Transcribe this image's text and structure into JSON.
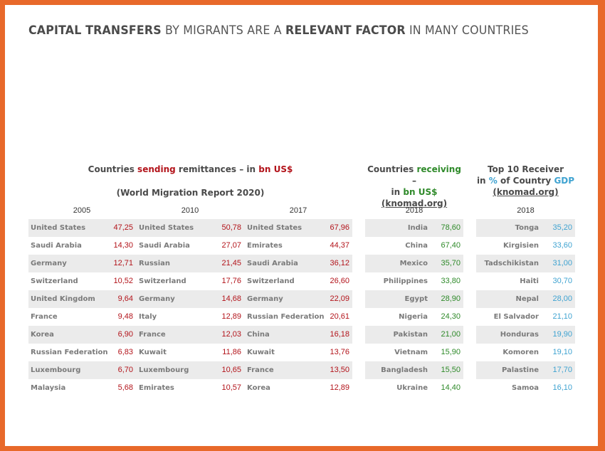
{
  "title": {
    "part1": "CAPITAL TRANSFERS",
    "part2": " BY MIGRANTS ARE A ",
    "part3": "RELEVANT FACTOR",
    "part4": " IN MANY COUNTRIES"
  },
  "sending": {
    "h1": "Countries ",
    "h2": "sending",
    "h3": " remittances – in ",
    "h4": "bn US$",
    "h5": "(World Migration Report 2020)",
    "years": [
      "2005",
      "2010",
      "2017"
    ],
    "rows": [
      [
        [
          "United States",
          "47,25"
        ],
        [
          "United States",
          "50,78"
        ],
        [
          "United States",
          "67,96"
        ]
      ],
      [
        [
          "Saudi Arabia",
          "14,30"
        ],
        [
          "Saudi Arabia",
          "27,07"
        ],
        [
          "Emirates",
          "44,37"
        ]
      ],
      [
        [
          "Germany",
          "12,71"
        ],
        [
          "Russian",
          "21,45"
        ],
        [
          "Saudi Arabia",
          "36,12"
        ]
      ],
      [
        [
          "Switzerland",
          "10,52"
        ],
        [
          "Switzerland",
          "17,76"
        ],
        [
          "Switzerland",
          "26,60"
        ]
      ],
      [
        [
          "United Kingdom",
          "9,64"
        ],
        [
          "Germany",
          "14,68"
        ],
        [
          "Germany",
          "22,09"
        ]
      ],
      [
        [
          "France",
          "9,48"
        ],
        [
          "Italy",
          "12,89"
        ],
        [
          "Russian Federation",
          "20,61"
        ]
      ],
      [
        [
          "Korea",
          "6,90"
        ],
        [
          "France",
          "12,03"
        ],
        [
          "China",
          "16,18"
        ]
      ],
      [
        [
          "Russian Federation",
          "6,83"
        ],
        [
          "Kuwait",
          "11,86"
        ],
        [
          "Kuwait",
          "13,76"
        ]
      ],
      [
        [
          "Luxembourg",
          "6,70"
        ],
        [
          "Luxembourg",
          "10,65"
        ],
        [
          "France",
          "13,50"
        ]
      ],
      [
        [
          "Malaysia",
          "5,68"
        ],
        [
          "Emirates",
          "10,57"
        ],
        [
          "Korea",
          "12,89"
        ]
      ]
    ]
  },
  "receiving": {
    "h1": "Countries ",
    "h2": "receiving",
    "h3": " –",
    "h4": "in ",
    "h5": "bn US$",
    "h6": "(knomad.org)",
    "year": "2018",
    "rows": [
      [
        "India",
        "78,60"
      ],
      [
        "China",
        "67,40"
      ],
      [
        "Mexico",
        "35,70"
      ],
      [
        "Philippines",
        "33,80"
      ],
      [
        "Egypt",
        "28,90"
      ],
      [
        "Nigeria",
        "24,30"
      ],
      [
        "Pakistan",
        "21,00"
      ],
      [
        "Vietnam",
        "15,90"
      ],
      [
        "Bangladesh",
        "15,50"
      ],
      [
        "Ukraine",
        "14,40"
      ]
    ]
  },
  "gdp": {
    "h1": "Top 10 Receiver",
    "h2": "in ",
    "h3": "%",
    "h4": " of Country ",
    "h5": "GDP",
    "h6": "(knomad.org)",
    "year": "2018",
    "rows": [
      [
        "Tonga",
        "35,20"
      ],
      [
        "Kirgisien",
        "33,60"
      ],
      [
        "Tadschikistan",
        "31,00"
      ],
      [
        "Haiti",
        "30,70"
      ],
      [
        "Nepal",
        "28,00"
      ],
      [
        "El Salvador",
        "21,10"
      ],
      [
        "Honduras",
        "19,90"
      ],
      [
        "Komoren",
        "19,10"
      ],
      [
        "Palastine",
        "17,70"
      ],
      [
        "Samoa",
        "16,10"
      ]
    ]
  },
  "colors": {
    "frame": "#e8692a",
    "sending_accent": "#b3141b",
    "receiving_accent": "#2f8a2a",
    "gdp_accent": "#3fa3d1",
    "row_shade": "#ebebeb"
  }
}
